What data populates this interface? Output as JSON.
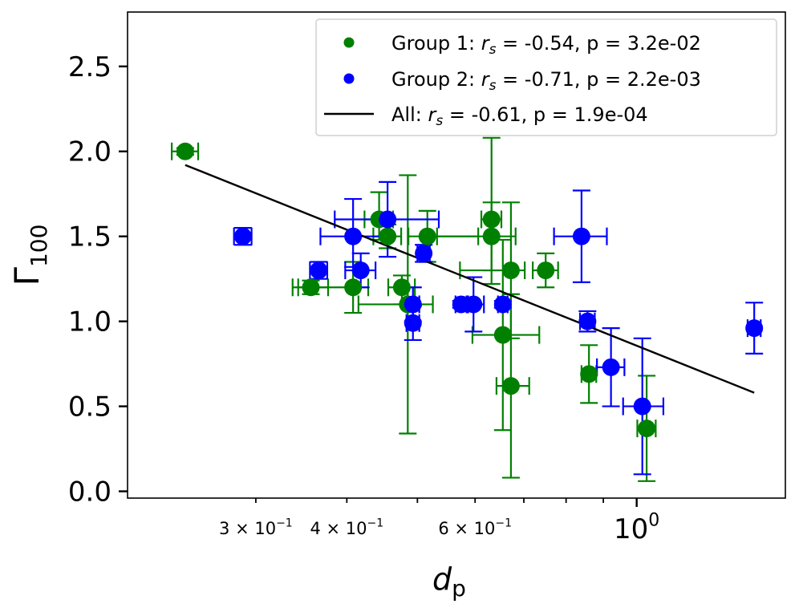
{
  "chart_data": {
    "type": "scatter",
    "xscale": "log",
    "xlim": [
      0.2,
      1.6
    ],
    "ylim": [
      -0.04,
      2.82
    ],
    "xlabel": {
      "base": "d",
      "sub": "p"
    },
    "ylabel": {
      "base": "Γ",
      "sub": "100"
    },
    "y_ticks": [
      {
        "value": 0.0,
        "label": "0.0"
      },
      {
        "value": 0.5,
        "label": "0.5"
      },
      {
        "value": 1.0,
        "label": "1.0"
      },
      {
        "value": 1.5,
        "label": "1.5"
      },
      {
        "value": 2.0,
        "label": "2.0"
      },
      {
        "value": 2.5,
        "label": "2.5"
      }
    ],
    "x_major_ticks": [
      {
        "value": 1.0,
        "base": "10",
        "exp": "0"
      }
    ],
    "x_minor_ticks": [
      {
        "value": 0.3,
        "base": "3 × 10",
        "exp": "−1"
      },
      {
        "value": 0.4,
        "base": "4 × 10",
        "exp": "−1"
      },
      {
        "value": 0.5,
        "base": "",
        "exp": ""
      },
      {
        "value": 0.6,
        "base": "6 × 10",
        "exp": "−1"
      },
      {
        "value": 0.7,
        "base": "",
        "exp": ""
      },
      {
        "value": 0.8,
        "base": "",
        "exp": ""
      },
      {
        "value": 0.9,
        "base": "",
        "exp": ""
      }
    ],
    "series": [
      {
        "name": "Group 1",
        "color": "#008000",
        "legend": {
          "prefix": "Group 1: ",
          "stat": "r",
          "stat_sub": "s",
          "suffix": " = -0.54, p = 3.2e-02"
        },
        "points": [
          {
            "x": 0.24,
            "y": 2.0,
            "xerr": [
              0.01,
              0.01
            ],
            "yerr": [
              0.02,
              0.02
            ]
          },
          {
            "x": 0.357,
            "y": 1.2,
            "xerr": [
              0.02,
              0.02
            ],
            "yerr": [
              0.04,
              0.04
            ]
          },
          {
            "x": 0.408,
            "y": 1.2,
            "xerr": [
              0.065,
              0.02
            ],
            "yerr": [
              0.15,
              0.15
            ]
          },
          {
            "x": 0.443,
            "y": 1.6,
            "xerr": [
              0.02,
              0.02
            ],
            "yerr": [
              0.12,
              0.16
            ]
          },
          {
            "x": 0.455,
            "y": 1.5,
            "xerr": [
              0.02,
              0.02
            ],
            "yerr": [
              0.07,
              0.07
            ]
          },
          {
            "x": 0.476,
            "y": 1.2,
            "xerr": [
              0.02,
              0.02
            ],
            "yerr": [
              0.1,
              0.07
            ]
          },
          {
            "x": 0.485,
            "y": 1.1,
            "xerr": [
              0.07,
              0.04
            ],
            "yerr": [
              0.76,
              0.76
            ]
          },
          {
            "x": 0.516,
            "y": 1.5,
            "xerr": [
              0.03,
              0.09
            ],
            "yerr": [
              0.15,
              0.15
            ]
          },
          {
            "x": 0.632,
            "y": 1.6,
            "xerr": [
              0.02,
              0.02
            ],
            "yerr": [
              0.38,
              0.48
            ]
          },
          {
            "x": 0.632,
            "y": 1.5,
            "xerr": [
              0.1,
              0.05
            ],
            "yerr": [
              0.2,
              0.2
            ]
          },
          {
            "x": 0.655,
            "y": 0.92,
            "xerr": [
              0.06,
              0.08
            ],
            "yerr": [
              0.56,
              0.56
            ]
          },
          {
            "x": 0.672,
            "y": 1.3,
            "xerr": [
              0.1,
              0.03
            ],
            "yerr": [
              0.4,
              0.4
            ]
          },
          {
            "x": 0.672,
            "y": 0.62,
            "xerr": [
              0.03,
              0.04
            ],
            "yerr": [
              0.54,
              0.54
            ]
          },
          {
            "x": 0.75,
            "y": 1.3,
            "xerr": [
              0.03,
              0.03
            ],
            "yerr": [
              0.1,
              0.1
            ]
          },
          {
            "x": 0.86,
            "y": 0.69,
            "xerr": [
              0.02,
              0.02
            ],
            "yerr": [
              0.17,
              0.17
            ]
          },
          {
            "x": 1.032,
            "y": 0.37,
            "xerr": [
              0.03,
              0.03
            ],
            "yerr": [
              0.31,
              0.31
            ]
          }
        ]
      },
      {
        "name": "Group 2",
        "color": "#0000ff",
        "legend": {
          "prefix": "Group 2: ",
          "stat": "r",
          "stat_sub": "s",
          "suffix": " = -0.71, p = 2.2e-03"
        },
        "points": [
          {
            "x": 0.288,
            "y": 1.5,
            "xerr": [
              0.008,
              0.008
            ],
            "yerr": [
              0.05,
              0.05
            ]
          },
          {
            "x": 0.366,
            "y": 1.3,
            "xerr": [
              0.01,
              0.01
            ],
            "yerr": [
              0.05,
              0.05
            ]
          },
          {
            "x": 0.408,
            "y": 1.5,
            "xerr": [
              0.04,
              0.05
            ],
            "yerr": [
              0.18,
              0.22
            ]
          },
          {
            "x": 0.418,
            "y": 1.3,
            "xerr": [
              0.02,
              0.02
            ],
            "yerr": [
              0.1,
              0.1
            ]
          },
          {
            "x": 0.455,
            "y": 1.6,
            "xerr": [
              0.07,
              0.08
            ],
            "yerr": [
              0.22,
              0.22
            ]
          },
          {
            "x": 0.493,
            "y": 1.1,
            "xerr": [
              0.01,
              0.01
            ],
            "yerr": [
              0.1,
              0.1
            ]
          },
          {
            "x": 0.493,
            "y": 0.99,
            "xerr": [
              0.01,
              0.01
            ],
            "yerr": [
              0.1,
              0.1
            ]
          },
          {
            "x": 0.51,
            "y": 1.4,
            "xerr": [
              0.01,
              0.01
            ],
            "yerr": [
              0.05,
              0.05
            ]
          },
          {
            "x": 0.574,
            "y": 1.1,
            "xerr": [
              0.01,
              0.01
            ],
            "yerr": [
              0.02,
              0.02
            ]
          },
          {
            "x": 0.597,
            "y": 1.1,
            "xerr": [
              0.01,
              0.02
            ],
            "yerr": [
              0.16,
              0.16
            ]
          },
          {
            "x": 0.655,
            "y": 1.1,
            "xerr": [
              0.01,
              0.01
            ],
            "yerr": [
              0.02,
              0.02
            ]
          },
          {
            "x": 0.84,
            "y": 1.5,
            "xerr": [
              0.07,
              0.07
            ],
            "yerr": [
              0.27,
              0.27
            ]
          },
          {
            "x": 0.856,
            "y": 1.0,
            "xerr": [
              0.02,
              0.02
            ],
            "yerr": [
              0.06,
              0.06
            ]
          },
          {
            "x": 0.922,
            "y": 0.73,
            "xerr": [
              0.04,
              0.04
            ],
            "yerr": [
              0.23,
              0.23
            ]
          },
          {
            "x": 1.018,
            "y": 0.5,
            "xerr": [
              0.06,
              0.07
            ],
            "yerr": [
              0.4,
              0.4
            ]
          },
          {
            "x": 1.45,
            "y": 0.96,
            "xerr": [
              0.03,
              0.03
            ],
            "yerr": [
              0.15,
              0.15
            ]
          }
        ]
      }
    ],
    "fit_line": {
      "name": "All",
      "color": "#000000",
      "legend": {
        "prefix": "All: ",
        "stat": "r",
        "stat_sub": "s",
        "suffix": " = -0.61, p = 1.9e-04"
      },
      "start": {
        "x": 0.24,
        "y": 1.92
      },
      "end": {
        "x": 1.45,
        "y": 0.58
      }
    },
    "legend_position": "top-right"
  }
}
